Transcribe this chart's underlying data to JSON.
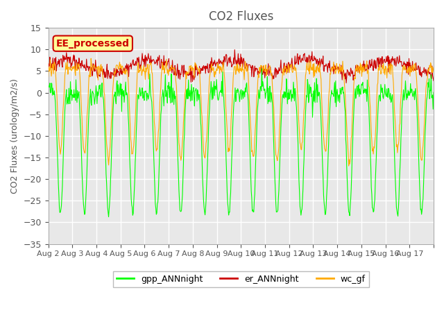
{
  "title": "CO2 Fluxes",
  "ylabel": "CO2 Fluxes (urology/m2/s)",
  "ylim": [
    -35,
    15
  ],
  "yticks": [
    -35,
    -30,
    -25,
    -20,
    -15,
    -10,
    -5,
    0,
    5,
    10,
    15
  ],
  "xlabel_dates": [
    "Aug 2",
    "Aug 3",
    "Aug 4",
    "Aug 5",
    "Aug 6",
    "Aug 7",
    "Aug 8",
    "Aug 9",
    "Aug 10",
    "Aug 11",
    "Aug 12",
    "Aug 13",
    "Aug 14",
    "Aug 15",
    "Aug 16",
    "Aug 17",
    ""
  ],
  "n_days": 16,
  "points_per_day": 48,
  "gpp_color": "#00ff00",
  "er_color": "#cc0000",
  "wc_color": "#ffaa00",
  "legend_label_gpp": "gpp_ANNnight",
  "legend_label_er": "er_ANNnight",
  "legend_label_wc": "wc_gf",
  "watermark_text": "EE_processed",
  "watermark_color": "#cc0000",
  "watermark_bg": "#ffff99",
  "background_color": "#e8e8e8",
  "grid_color": "#ffffff",
  "title_color": "#555555",
  "axis_label_color": "#555555",
  "tick_label_color": "#555555"
}
